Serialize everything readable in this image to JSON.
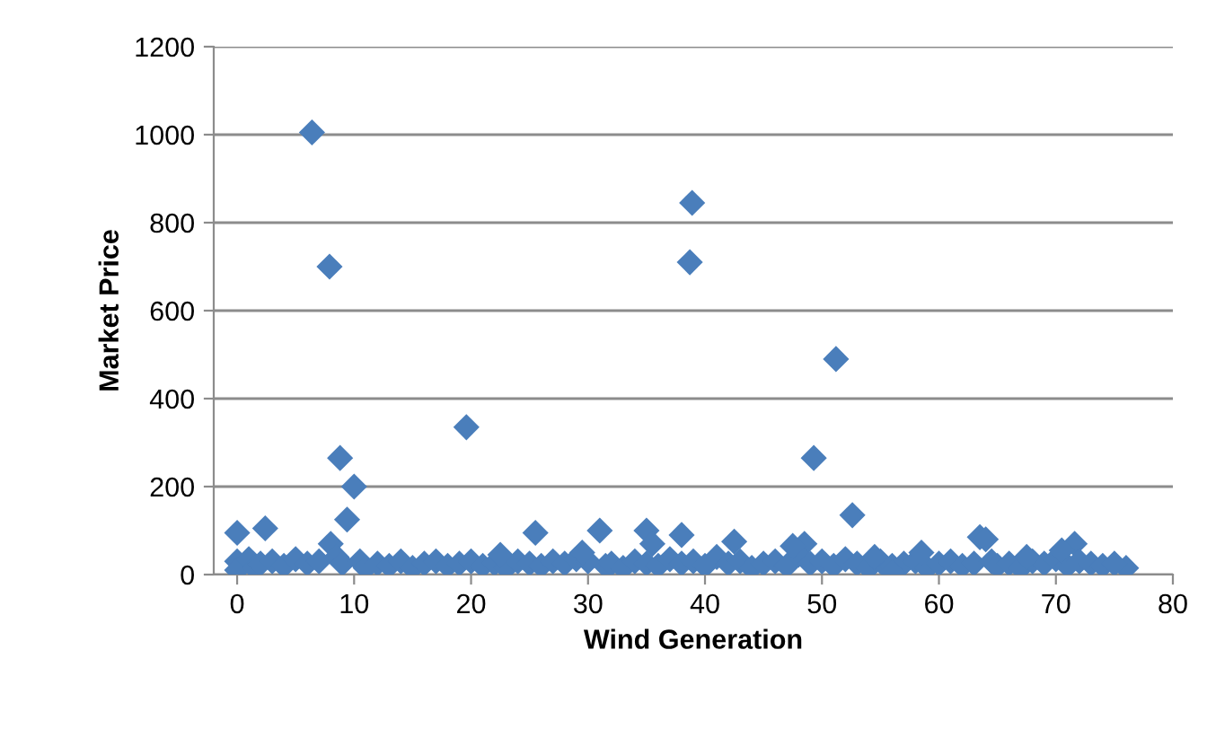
{
  "chart_data": {
    "type": "scatter",
    "xlabel": "Wind Generation",
    "ylabel": "Market Price",
    "xlim": [
      -2,
      80
    ],
    "xticks": [
      0,
      10,
      20,
      30,
      40,
      50,
      60,
      70,
      80
    ],
    "ylim": [
      0,
      1200
    ],
    "yticks": [
      0,
      200,
      400,
      600,
      800,
      1000,
      1200
    ],
    "grid": "y",
    "marker": "diamond",
    "legend": false,
    "series": [
      {
        "color": "#4a7ebb",
        "x": [
          6.4,
          7.9,
          8.8,
          10.0,
          9.4,
          19.6,
          38.9,
          38.7,
          51.2,
          49.3,
          52.6,
          0,
          2.4,
          25.5,
          31,
          35,
          35.5,
          38,
          42.5,
          63.5,
          64,
          48.5,
          71.6,
          76,
          8,
          0,
          0,
          1,
          1.5,
          2,
          3,
          4,
          5,
          6,
          7,
          8.5,
          9,
          10.5,
          11,
          12,
          13,
          14,
          15,
          16,
          17,
          18,
          19,
          20,
          21,
          22,
          23,
          24,
          25,
          26,
          27,
          28,
          29,
          30,
          31.5,
          32,
          33,
          34,
          35,
          36,
          37,
          38,
          39,
          40,
          41,
          42,
          43,
          44,
          45,
          46,
          47,
          48,
          49,
          50,
          51,
          52,
          53,
          54,
          55,
          56,
          57,
          58,
          59,
          60,
          61,
          62,
          63,
          64.5,
          65,
          66,
          67,
          68,
          69,
          70,
          71,
          72,
          73,
          74,
          75,
          22.5,
          29.5,
          47.5,
          54.5,
          56,
          58.5,
          67.5,
          70.5
        ],
        "values": [
          1005,
          700,
          265,
          200,
          125,
          335,
          845,
          710,
          490,
          265,
          135,
          95,
          105,
          95,
          100,
          100,
          70,
          90,
          75,
          85,
          80,
          70,
          70,
          15,
          70,
          30,
          10,
          35,
          15,
          25,
          30,
          20,
          35,
          25,
          30,
          40,
          25,
          30,
          15,
          25,
          20,
          30,
          15,
          25,
          30,
          20,
          25,
          30,
          20,
          25,
          15,
          30,
          25,
          20,
          30,
          25,
          35,
          30,
          20,
          25,
          15,
          30,
          25,
          20,
          35,
          25,
          30,
          20,
          40,
          25,
          30,
          15,
          25,
          30,
          20,
          45,
          25,
          30,
          20,
          35,
          25,
          15,
          30,
          20,
          25,
          30,
          15,
          25,
          30,
          20,
          25,
          30,
          20,
          25,
          15,
          30,
          25,
          35,
          20,
          30,
          25,
          20,
          25,
          45,
          50,
          65,
          40,
          5,
          50,
          40,
          55
        ]
      }
    ]
  }
}
